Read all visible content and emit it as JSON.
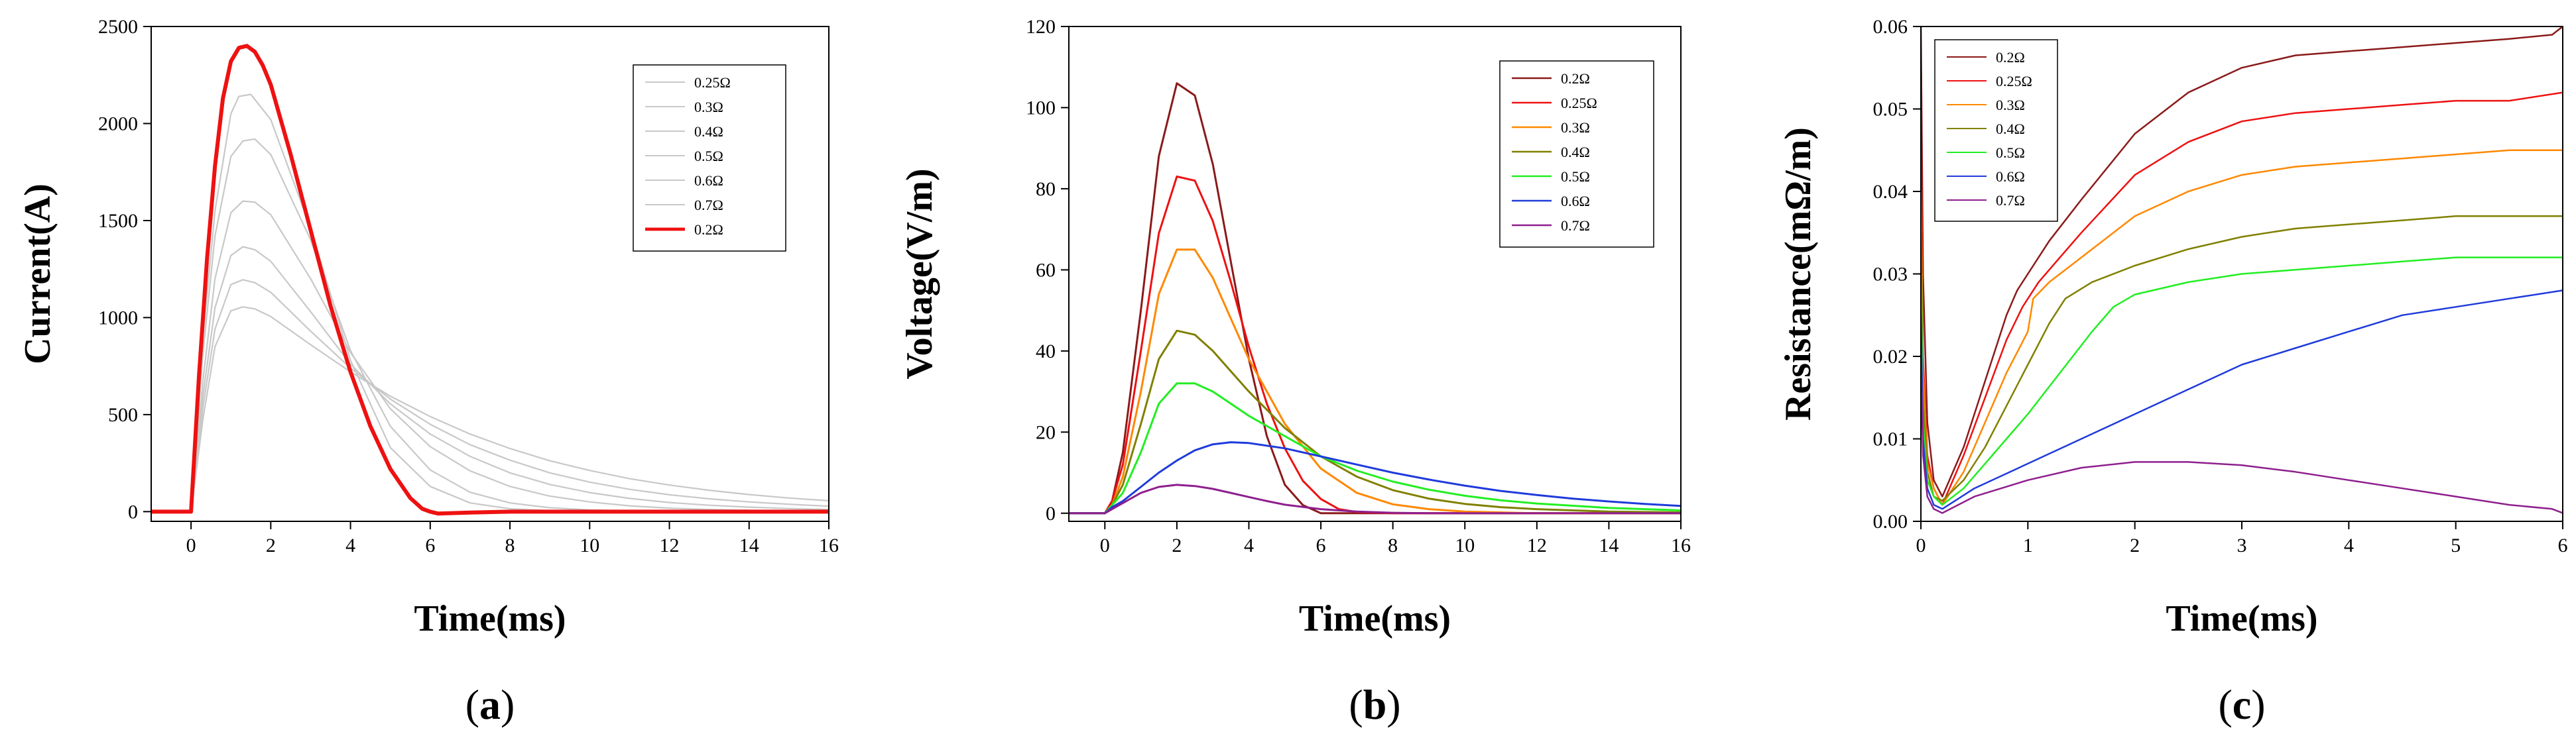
{
  "chart_data": [
    {
      "type": "line",
      "panel": "(a)",
      "panel_bold": "a",
      "xlabel": "Time(ms)",
      "ylabel": "Current(A)",
      "xlim": [
        -1,
        16
      ],
      "ylim": [
        -50,
        2500
      ],
      "xticks": [
        0,
        2,
        4,
        6,
        8,
        10,
        12,
        14,
        16
      ],
      "yticks": [
        0,
        500,
        1000,
        1500,
        2000,
        2500
      ],
      "legend_position": "top-right",
      "series": [
        {
          "name": "0.25Ω",
          "color": "#c8c8c8",
          "width": 2.2,
          "x": [
            -1,
            0,
            0.3,
            0.6,
            1,
            1.2,
            1.5,
            2,
            3,
            4,
            5,
            6,
            7,
            8,
            9,
            10,
            11,
            12,
            13,
            14,
            15,
            16
          ],
          "y": [
            0,
            0,
            900,
            1550,
            2050,
            2140,
            2150,
            2020,
            1460,
            780,
            330,
            130,
            45,
            15,
            5,
            2,
            0,
            0,
            0,
            0,
            0,
            0
          ]
        },
        {
          "name": "0.3Ω",
          "color": "#c8c8c8",
          "width": 2.2,
          "x": [
            -1,
            0,
            0.3,
            0.6,
            1,
            1.3,
            1.6,
            2,
            3,
            4,
            5,
            6,
            7,
            8,
            9,
            10,
            11,
            12,
            13,
            14,
            15,
            16
          ],
          "y": [
            0,
            0,
            820,
            1420,
            1830,
            1910,
            1920,
            1840,
            1400,
            830,
            440,
            215,
            100,
            45,
            20,
            9,
            4,
            2,
            0,
            0,
            0,
            0
          ]
        },
        {
          "name": "0.4Ω",
          "color": "#c8c8c8",
          "width": 2.2,
          "x": [
            -1,
            0,
            0.3,
            0.6,
            1,
            1.3,
            1.6,
            2,
            3,
            4,
            5,
            6,
            7,
            8,
            9,
            10,
            11,
            12,
            13,
            14,
            15,
            16
          ],
          "y": [
            0,
            0,
            680,
            1200,
            1540,
            1600,
            1595,
            1530,
            1200,
            820,
            530,
            335,
            210,
            130,
            80,
            50,
            30,
            18,
            11,
            7,
            4,
            2
          ]
        },
        {
          "name": "0.5Ω",
          "color": "#c8c8c8",
          "width": 2.2,
          "x": [
            -1,
            0,
            0.3,
            0.6,
            1,
            1.3,
            1.6,
            2,
            3,
            4,
            5,
            6,
            7,
            8,
            9,
            10,
            11,
            12,
            13,
            14,
            15,
            16
          ],
          "y": [
            0,
            0,
            600,
            1050,
            1320,
            1365,
            1350,
            1290,
            1030,
            760,
            555,
            400,
            285,
            200,
            140,
            98,
            68,
            47,
            33,
            23,
            16,
            11
          ]
        },
        {
          "name": "0.6Ω",
          "color": "#c8c8c8",
          "width": 2.2,
          "x": [
            -1,
            0,
            0.3,
            0.6,
            1,
            1.3,
            1.6,
            2,
            3,
            4,
            5,
            6,
            7,
            8,
            9,
            10,
            11,
            12,
            13,
            14,
            15,
            16
          ],
          "y": [
            0,
            0,
            540,
            940,
            1170,
            1195,
            1180,
            1130,
            930,
            740,
            580,
            450,
            345,
            265,
            200,
            152,
            115,
            87,
            66,
            50,
            38,
            28
          ]
        },
        {
          "name": "0.7Ω",
          "color": "#c8c8c8",
          "width": 2.2,
          "x": [
            -1,
            0,
            0.3,
            0.6,
            1,
            1.3,
            1.6,
            2,
            3,
            4,
            5,
            6,
            7,
            8,
            9,
            10,
            11,
            12,
            13,
            14,
            15,
            16
          ],
          "y": [
            0,
            0,
            480,
            850,
            1035,
            1055,
            1045,
            1005,
            860,
            720,
            595,
            490,
            400,
            325,
            262,
            212,
            170,
            137,
            110,
            88,
            70,
            56
          ]
        },
        {
          "name": "0.2Ω",
          "color": "#ee1111",
          "width": 6,
          "x": [
            -1,
            0,
            0.2,
            0.4,
            0.6,
            0.8,
            1,
            1.2,
            1.4,
            1.6,
            1.8,
            2,
            2.5,
            3,
            3.5,
            4,
            4.5,
            5,
            5.5,
            5.8,
            6,
            6.2,
            7,
            8,
            9,
            10,
            11,
            12,
            13,
            14,
            15,
            16
          ],
          "y": [
            0,
            0,
            700,
            1300,
            1780,
            2130,
            2320,
            2390,
            2400,
            2370,
            2300,
            2200,
            1840,
            1450,
            1060,
            720,
            440,
            220,
            70,
            15,
            0,
            -10,
            -5,
            0,
            0,
            0,
            0,
            0,
            0,
            0,
            0,
            0
          ]
        }
      ]
    },
    {
      "type": "line",
      "panel": "(b)",
      "panel_bold": "b",
      "xlabel": "Time(ms)",
      "ylabel": "Voltage(V/m)",
      "xlim": [
        -1,
        16
      ],
      "ylim": [
        -2,
        120
      ],
      "xticks": [
        0,
        2,
        4,
        6,
        8,
        10,
        12,
        14,
        16
      ],
      "yticks": [
        0,
        20,
        40,
        60,
        80,
        100,
        120
      ],
      "legend_position": "top-right",
      "series": [
        {
          "name": "0.2Ω",
          "color": "#8b1a1a",
          "width": 3,
          "x": [
            -1,
            0,
            0.2,
            0.5,
            1,
            1.5,
            2,
            2.5,
            3,
            3.5,
            4,
            4.5,
            5,
            5.5,
            6,
            6.3,
            7,
            8,
            16
          ],
          "y": [
            0,
            0,
            3,
            15,
            50,
            88,
            106,
            103,
            86,
            62,
            38,
            19,
            7,
            2,
            0,
            0,
            0,
            0,
            0
          ]
        },
        {
          "name": "0.25Ω",
          "color": "#ee1111",
          "width": 3,
          "x": [
            -1,
            0,
            0.2,
            0.5,
            1,
            1.5,
            2,
            2.5,
            3,
            3.5,
            4,
            4.5,
            5,
            5.5,
            6,
            6.5,
            7,
            8,
            16
          ],
          "y": [
            0,
            0,
            3,
            12,
            40,
            69,
            83,
            82,
            72,
            57,
            41,
            27,
            16,
            8,
            3.5,
            1,
            0.3,
            0,
            0
          ]
        },
        {
          "name": "0.3Ω",
          "color": "#ff8800",
          "width": 3,
          "x": [
            -1,
            0,
            0.2,
            0.5,
            1,
            1.5,
            2,
            2.5,
            3,
            3.5,
            4,
            5,
            6,
            7,
            8,
            9,
            10,
            12,
            16
          ],
          "y": [
            0,
            0,
            2,
            9,
            30,
            54,
            65,
            65,
            58,
            48,
            38,
            22,
            11,
            5,
            2.2,
            1,
            0.4,
            0,
            0
          ]
        },
        {
          "name": "0.4Ω",
          "color": "#808000",
          "width": 3,
          "x": [
            -1,
            0,
            0.2,
            0.5,
            1,
            1.5,
            2,
            2.5,
            3,
            3.5,
            4,
            5,
            6,
            7,
            8,
            9,
            10,
            11,
            12,
            14,
            16
          ],
          "y": [
            0,
            0,
            2,
            7,
            22,
            38,
            45,
            44,
            40,
            35,
            30,
            21,
            14,
            9,
            5.7,
            3.6,
            2.3,
            1.5,
            1,
            0.4,
            0.2
          ]
        },
        {
          "name": "0.5Ω",
          "color": "#22ee22",
          "width": 3,
          "x": [
            -1,
            0,
            0.2,
            0.5,
            1,
            1.5,
            2,
            2.5,
            3,
            3.5,
            4,
            5,
            6,
            7,
            8,
            9,
            10,
            11,
            12,
            14,
            16
          ],
          "y": [
            0,
            0,
            2,
            5,
            15,
            27,
            32,
            32,
            30,
            27,
            24,
            19,
            14,
            10.5,
            7.8,
            5.8,
            4.3,
            3.2,
            2.4,
            1.3,
            0.7
          ]
        },
        {
          "name": "0.6Ω",
          "color": "#1f3bdb",
          "width": 3,
          "x": [
            -1,
            0,
            0.2,
            0.5,
            1,
            1.5,
            2,
            2.5,
            3,
            3.5,
            4,
            5,
            6,
            7,
            8,
            9,
            10,
            11,
            12,
            13,
            14,
            15,
            16
          ],
          "y": [
            0,
            0,
            1.5,
            3,
            6.5,
            10,
            13,
            15.5,
            17,
            17.5,
            17.3,
            16,
            14,
            12,
            10,
            8.3,
            6.8,
            5.5,
            4.5,
            3.6,
            2.9,
            2.3,
            1.8
          ]
        },
        {
          "name": "0.7Ω",
          "color": "#8e1f8e",
          "width": 3,
          "x": [
            -1,
            0,
            0.2,
            0.5,
            1,
            1.5,
            2,
            2.5,
            3,
            3.5,
            4,
            4.5,
            5,
            6,
            7,
            8,
            9,
            10,
            16
          ],
          "y": [
            0,
            0,
            1,
            2.5,
            5,
            6.5,
            7,
            6.7,
            6,
            5,
            4,
            3,
            2.1,
            1,
            0.4,
            0.1,
            0,
            0,
            0
          ]
        }
      ]
    },
    {
      "type": "line",
      "panel": "(c)",
      "panel_bold": "c",
      "xlabel": "Time(ms)",
      "ylabel": "Resistance(mΩ/m)",
      "xlim": [
        0,
        6
      ],
      "ylim": [
        0,
        0.06
      ],
      "xticks": [
        0,
        1,
        2,
        3,
        4,
        5,
        6
      ],
      "yticks": [
        0,
        0.01,
        0.02,
        0.03,
        0.04,
        0.05,
        0.06
      ],
      "ytick_labels": [
        "0.00",
        "0.01",
        "0.02",
        "0.03",
        "0.04",
        "0.05",
        "0.06"
      ],
      "legend_position": "top-left",
      "series": [
        {
          "name": "0.2Ω",
          "color": "#8b1a1a",
          "width": 2.5,
          "x": [
            0,
            0.02,
            0.06,
            0.12,
            0.2,
            0.4,
            0.6,
            0.8,
            0.9,
            1.0,
            1.2,
            1.5,
            2,
            2.5,
            3,
            3.5,
            4,
            4.5,
            5,
            5.5,
            5.9,
            6
          ],
          "y": [
            0.06,
            0.03,
            0.012,
            0.005,
            0.003,
            0.009,
            0.017,
            0.025,
            0.028,
            0.03,
            0.034,
            0.039,
            0.047,
            0.052,
            0.055,
            0.0565,
            0.057,
            0.0575,
            0.058,
            0.0585,
            0.059,
            0.06
          ]
        },
        {
          "name": "0.25Ω",
          "color": "#ee1111",
          "width": 2.5,
          "x": [
            0,
            0.02,
            0.06,
            0.12,
            0.2,
            0.4,
            0.6,
            0.8,
            0.95,
            1.1,
            1.3,
            1.5,
            2,
            2.5,
            3,
            3.5,
            4,
            4.5,
            5,
            5.5,
            6
          ],
          "y": [
            0.045,
            0.02,
            0.008,
            0.004,
            0.002,
            0.008,
            0.015,
            0.022,
            0.026,
            0.029,
            0.032,
            0.035,
            0.042,
            0.046,
            0.0485,
            0.0495,
            0.05,
            0.0505,
            0.051,
            0.051,
            0.052
          ]
        },
        {
          "name": "0.3Ω",
          "color": "#ff8800",
          "width": 2.5,
          "x": [
            0,
            0.02,
            0.06,
            0.12,
            0.2,
            0.4,
            0.6,
            0.8,
            1.0,
            1.05,
            1.2,
            1.5,
            2,
            2.5,
            3,
            3.5,
            4,
            4.5,
            5,
            5.5,
            6
          ],
          "y": [
            0.04,
            0.018,
            0.007,
            0.004,
            0.002,
            0.006,
            0.012,
            0.018,
            0.023,
            0.027,
            0.029,
            0.032,
            0.037,
            0.04,
            0.042,
            0.043,
            0.0435,
            0.044,
            0.0445,
            0.045,
            0.045
          ]
        },
        {
          "name": "0.4Ω",
          "color": "#808000",
          "width": 2.5,
          "x": [
            0,
            0.02,
            0.06,
            0.12,
            0.2,
            0.4,
            0.6,
            0.8,
            1.0,
            1.2,
            1.35,
            1.6,
            2,
            2.5,
            3,
            3.5,
            4,
            4.5,
            5,
            5.5,
            6
          ],
          "y": [
            0.035,
            0.015,
            0.006,
            0.003,
            0.0025,
            0.005,
            0.009,
            0.014,
            0.019,
            0.024,
            0.027,
            0.029,
            0.031,
            0.033,
            0.0345,
            0.0355,
            0.036,
            0.0365,
            0.037,
            0.037,
            0.037
          ]
        },
        {
          "name": "0.5Ω",
          "color": "#22ee22",
          "width": 2.5,
          "x": [
            0,
            0.02,
            0.06,
            0.12,
            0.2,
            0.4,
            0.6,
            0.8,
            1.0,
            1.3,
            1.6,
            1.8,
            2.0,
            2.5,
            3,
            3.5,
            4,
            4.5,
            5,
            5.5,
            6
          ],
          "y": [
            0.03,
            0.012,
            0.005,
            0.003,
            0.002,
            0.004,
            0.007,
            0.01,
            0.013,
            0.018,
            0.023,
            0.026,
            0.0275,
            0.029,
            0.03,
            0.0305,
            0.031,
            0.0315,
            0.032,
            0.032,
            0.032
          ]
        },
        {
          "name": "0.6Ω",
          "color": "#1f3bdb",
          "width": 2.5,
          "x": [
            0,
            0.02,
            0.06,
            0.12,
            0.2,
            0.5,
            1,
            1.5,
            2,
            2.5,
            3,
            3.5,
            4,
            4.5,
            5,
            5.5,
            6
          ],
          "y": [
            0.025,
            0.01,
            0.004,
            0.002,
            0.0015,
            0.004,
            0.007,
            0.01,
            0.013,
            0.016,
            0.019,
            0.021,
            0.023,
            0.025,
            0.026,
            0.027,
            0.028
          ]
        },
        {
          "name": "0.7Ω",
          "color": "#8e1f8e",
          "width": 2.5,
          "x": [
            0,
            0.02,
            0.06,
            0.12,
            0.2,
            0.5,
            1,
            1.5,
            2,
            2.5,
            3,
            3.5,
            4,
            4.5,
            5,
            5.5,
            5.9,
            6
          ],
          "y": [
            0.02,
            0.008,
            0.003,
            0.0015,
            0.001,
            0.003,
            0.005,
            0.0065,
            0.0072,
            0.0072,
            0.0068,
            0.006,
            0.005,
            0.004,
            0.003,
            0.002,
            0.0015,
            0.001
          ]
        }
      ]
    }
  ]
}
